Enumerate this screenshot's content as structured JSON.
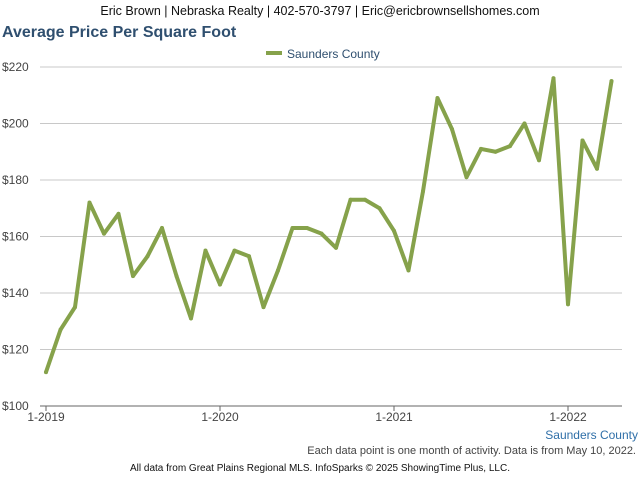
{
  "header": {
    "contact": "Eric Brown | Nebraska Realty | 402-570-3797 | Eric@ericbrownsellshomes.com"
  },
  "chart_data": {
    "type": "line",
    "title": "Average Price Per Square Foot",
    "xlabel": "",
    "ylabel": "",
    "y_ticks": [
      "$100",
      "$120",
      "$140",
      "$160",
      "$180",
      "$200",
      "$220"
    ],
    "ylim": [
      100,
      220
    ],
    "x_tick_labels": [
      {
        "index": 0,
        "label": "1-2019"
      },
      {
        "index": 12,
        "label": "1-2020"
      },
      {
        "index": 24,
        "label": "1-2021"
      },
      {
        "index": 36,
        "label": "1-2022"
      }
    ],
    "legend": {
      "placement": "top-center"
    },
    "series": [
      {
        "name": "Saunders County",
        "color": "#86a24b",
        "values": [
          112,
          127,
          135,
          172,
          161,
          168,
          146,
          153,
          163,
          146,
          131,
          155,
          143,
          155,
          153,
          135,
          148,
          163,
          163,
          161,
          156,
          173,
          173,
          170,
          162,
          148,
          176,
          209,
          198,
          181,
          191,
          190,
          192,
          200,
          187,
          216,
          136,
          194,
          184,
          215
        ]
      }
    ]
  },
  "region_label": "Saunders County",
  "note": "Each data point is one month of activity. Data is from May 10, 2022.",
  "footer": "All data from Great Plains Regional MLS. InfoSparks © 2025 ShowingTime Plus, LLC."
}
